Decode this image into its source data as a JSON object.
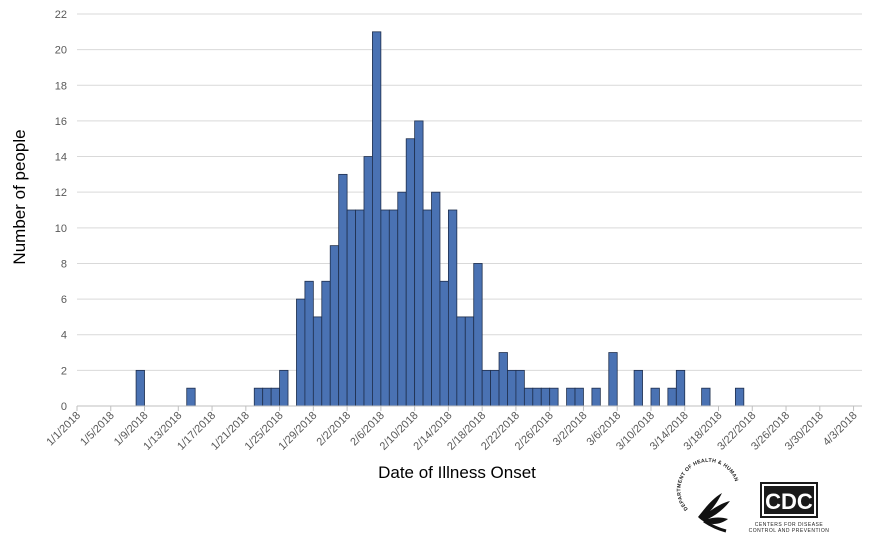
{
  "chart_data": {
    "type": "bar",
    "title": "",
    "xlabel": "Date of Illness Onset",
    "ylabel": "Number of people",
    "ylim": [
      0,
      22
    ],
    "yticks": [
      0,
      2,
      4,
      6,
      8,
      10,
      12,
      14,
      16,
      18,
      20,
      22
    ],
    "grid": "horizontal",
    "bar_color": "#4a72b3",
    "bar_edge_color": "#1f2f4d",
    "xlim": [
      "2018-01-01",
      "2018-04-03"
    ],
    "xtick_labels": [
      "1/1/2018",
      "1/5/2018",
      "1/9/2018",
      "1/13/2018",
      "1/17/2018",
      "1/21/2018",
      "1/25/2018",
      "1/29/2018",
      "2/2/2018",
      "2/6/2018",
      "2/10/2018",
      "2/14/2018",
      "2/18/2018",
      "2/22/2018",
      "2/26/2018",
      "3/2/2018",
      "3/6/2018",
      "3/10/2018",
      "3/14/2018",
      "3/18/2018",
      "3/22/2018",
      "3/26/2018",
      "3/30/2018",
      "4/3/2018"
    ],
    "categories": [
      "2018-01-08",
      "2018-01-14",
      "2018-01-22",
      "2018-01-23",
      "2018-01-24",
      "2018-01-25",
      "2018-01-27",
      "2018-01-28",
      "2018-01-29",
      "2018-01-30",
      "2018-01-31",
      "2018-02-01",
      "2018-02-02",
      "2018-02-03",
      "2018-02-04",
      "2018-02-05",
      "2018-02-06",
      "2018-02-07",
      "2018-02-08",
      "2018-02-09",
      "2018-02-10",
      "2018-02-11",
      "2018-02-12",
      "2018-02-13",
      "2018-02-14",
      "2018-02-15",
      "2018-02-16",
      "2018-02-17",
      "2018-02-18",
      "2018-02-19",
      "2018-02-20",
      "2018-02-21",
      "2018-02-22",
      "2018-02-23",
      "2018-02-24",
      "2018-02-25",
      "2018-02-26",
      "2018-02-28",
      "2018-03-01",
      "2018-03-03",
      "2018-03-05",
      "2018-03-08",
      "2018-03-10",
      "2018-03-12",
      "2018-03-13",
      "2018-03-16",
      "2018-03-20"
    ],
    "values": [
      2,
      1,
      1,
      1,
      1,
      2,
      6,
      7,
      5,
      7,
      9,
      13,
      11,
      11,
      14,
      21,
      11,
      11,
      12,
      15,
      16,
      11,
      12,
      7,
      11,
      5,
      5,
      8,
      2,
      2,
      3,
      2,
      2,
      1,
      1,
      1,
      1,
      1,
      1,
      1,
      3,
      2,
      1,
      1,
      2,
      1,
      1
    ]
  },
  "logos": {
    "hhs": {
      "name": "hhs-eagle-seal-icon",
      "text": "DEPARTMENT OF HEALTH & HUMAN SERVICES USA"
    },
    "cdc": {
      "name": "cdc-logo-icon",
      "wordmark": "CDC",
      "tagline_1": "CENTERS FOR DISEASE",
      "tagline_2": "CONTROL AND PREVENTION"
    }
  }
}
